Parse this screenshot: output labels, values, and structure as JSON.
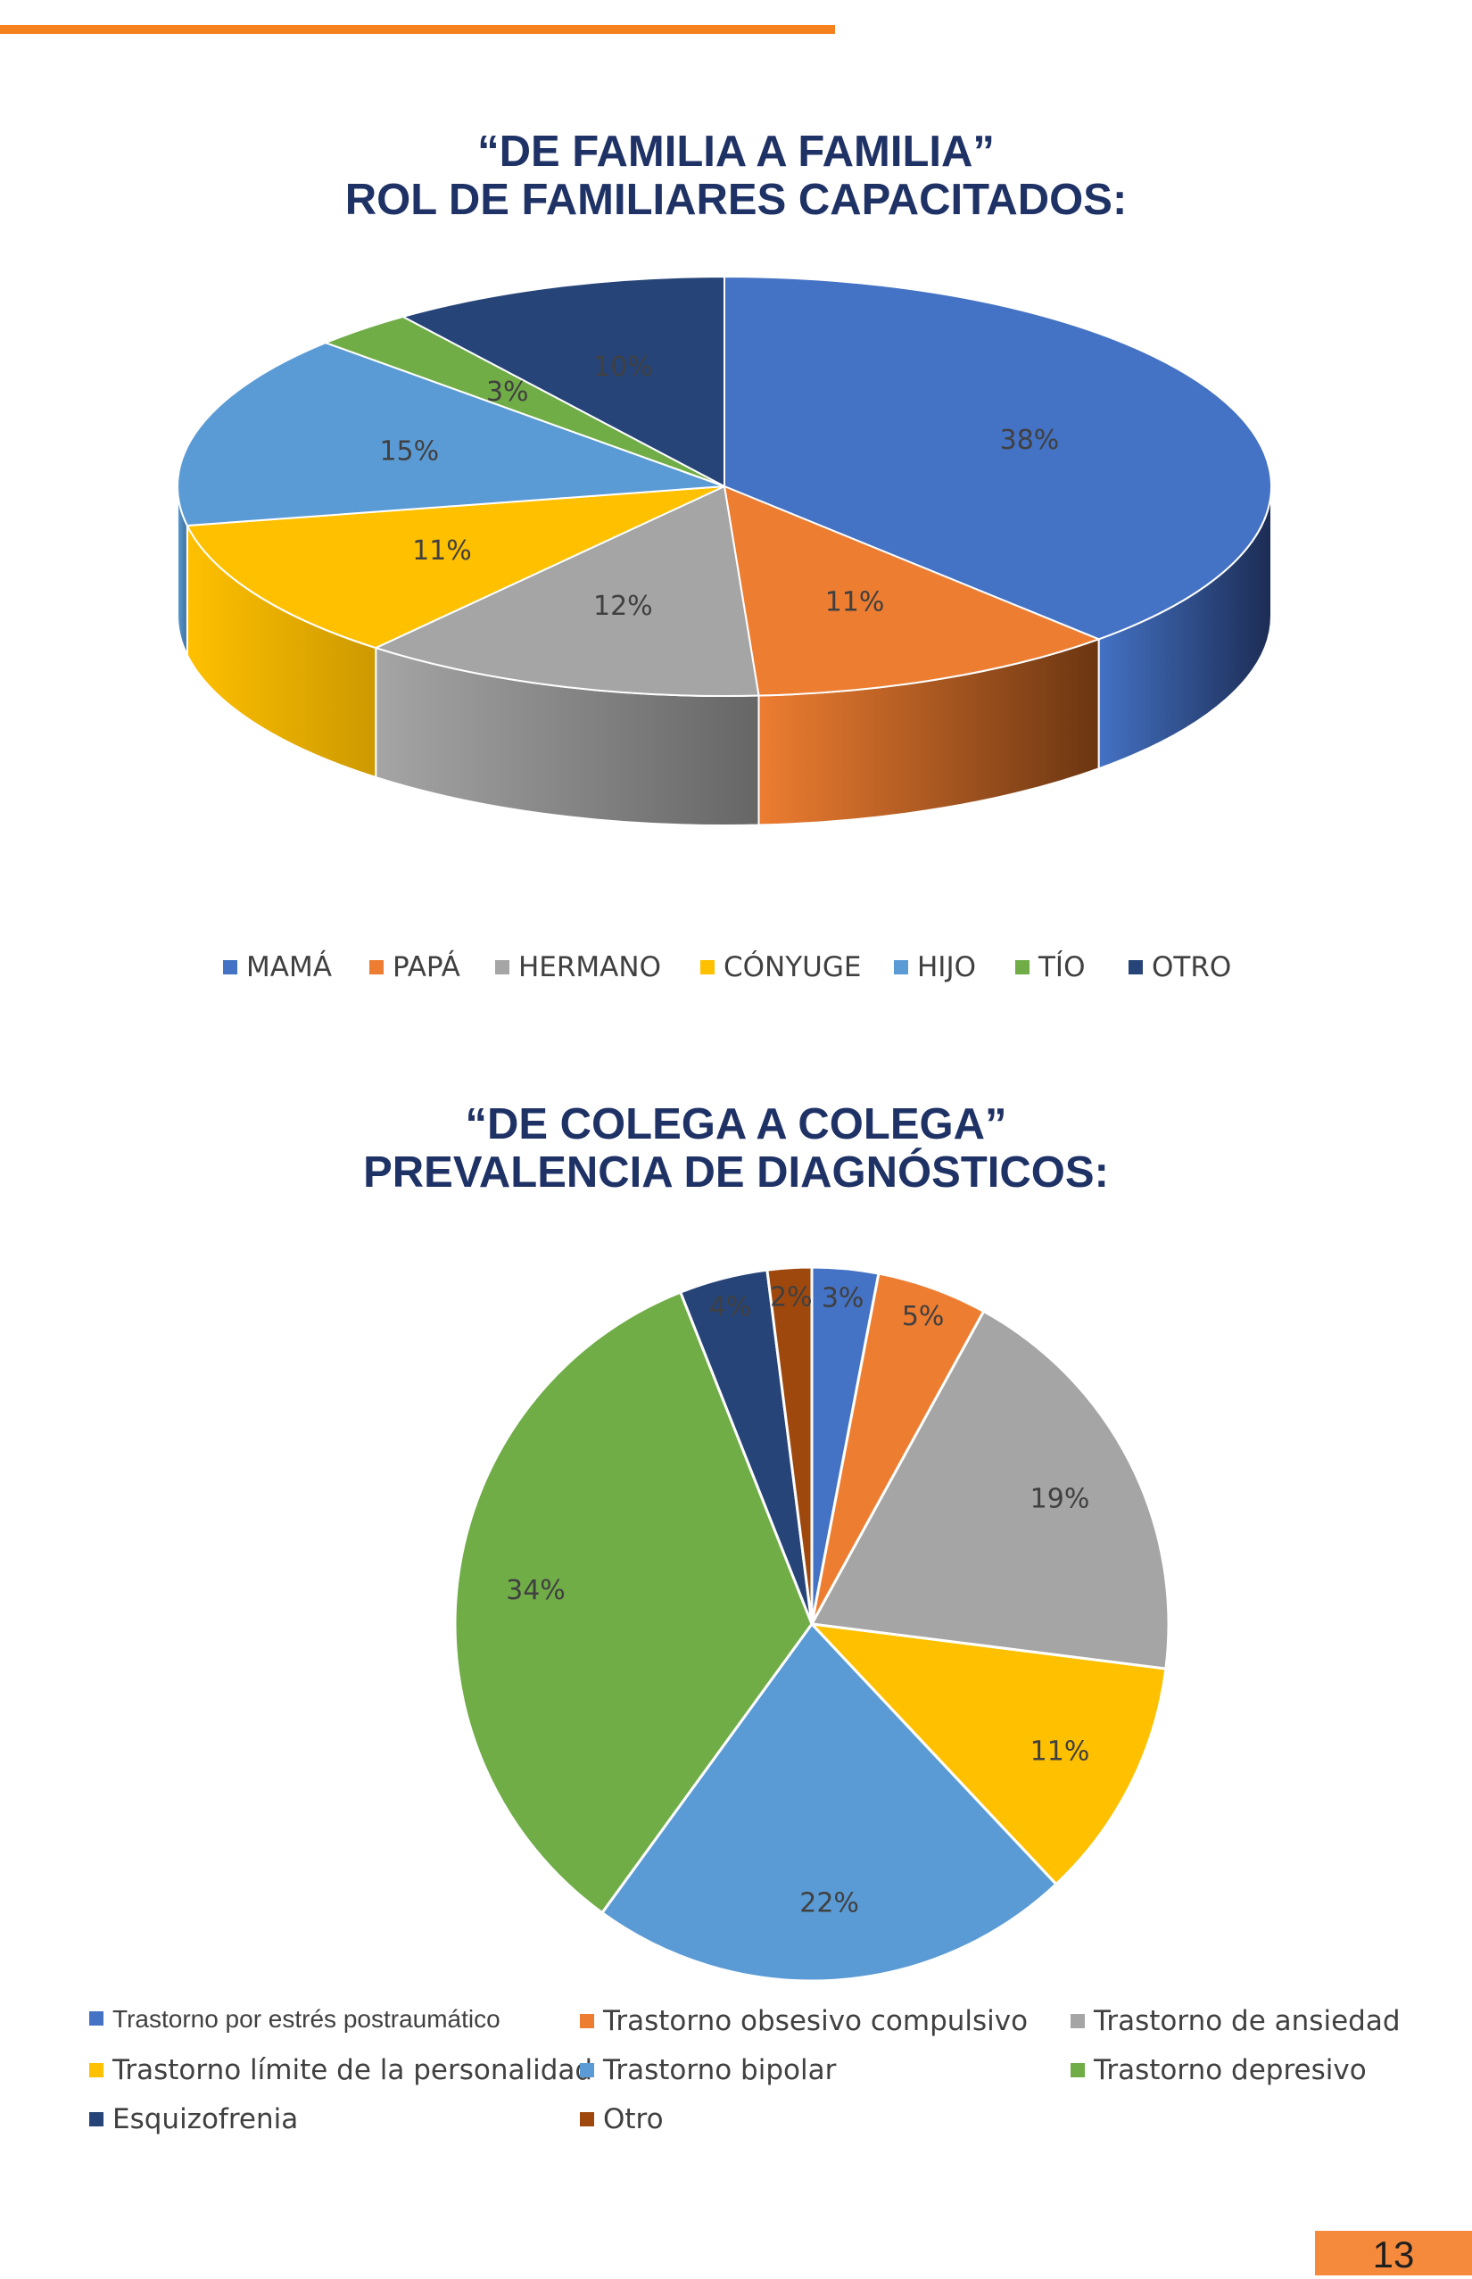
{
  "colors": {
    "accent": "#f5821f",
    "title": "#1f3266",
    "page_badge": "#f58a3c"
  },
  "page_number": "13",
  "chart1": {
    "title_line1": "“DE FAMILIA A FAMILIA”",
    "title_line2": "ROL DE FAMILIARES CAPACITADOS:"
  },
  "chart2": {
    "title_line1": "“DE COLEGA A COLEGA”",
    "title_line2": "PREVALENCIA DE DIAGNÓSTICOS:"
  },
  "chart_data": [
    {
      "type": "pie",
      "style": "3d",
      "legend_placement": "bottom",
      "categories": [
        "MAMÁ",
        "PAPÁ",
        "HERMANO",
        "CÓNYUGE",
        "HIJO",
        "TÍO",
        "OTRO"
      ],
      "values": [
        38,
        11,
        12,
        11,
        15,
        3,
        10
      ],
      "labels": [
        "38%",
        "11%",
        "12%",
        "11%",
        "15%",
        "3%",
        "10%"
      ],
      "colors": [
        "#4472c4",
        "#ed7d31",
        "#a5a5a5",
        "#ffc000",
        "#5b9bd5",
        "#70ad47",
        "#264478"
      ],
      "side_colors": [
        "#1c2c54",
        "#6b3612",
        "#666666",
        "#cc9900",
        "#3f6f9a",
        "#4a7a2d",
        "#18294a"
      ]
    },
    {
      "type": "pie",
      "legend_placement": "bottom",
      "categories": [
        "Trastorno por estrés postraumático",
        "Trastorno obsesivo compulsivo",
        "Trastorno de ansiedad",
        "Trastorno límite de la personalidad",
        "Trastorno bipolar",
        "Trastorno depresivo",
        "Esquizofrenia",
        "Otro"
      ],
      "values": [
        3,
        5,
        19,
        11,
        22,
        34,
        4,
        2
      ],
      "labels": [
        "3%",
        "5%",
        "19%",
        "11%",
        "22%",
        "34%",
        "4%",
        "2%"
      ],
      "colors": [
        "#4472c4",
        "#ed7d31",
        "#a5a5a5",
        "#ffc000",
        "#5b9bd5",
        "#70ad47",
        "#264478",
        "#9e480e"
      ]
    }
  ]
}
